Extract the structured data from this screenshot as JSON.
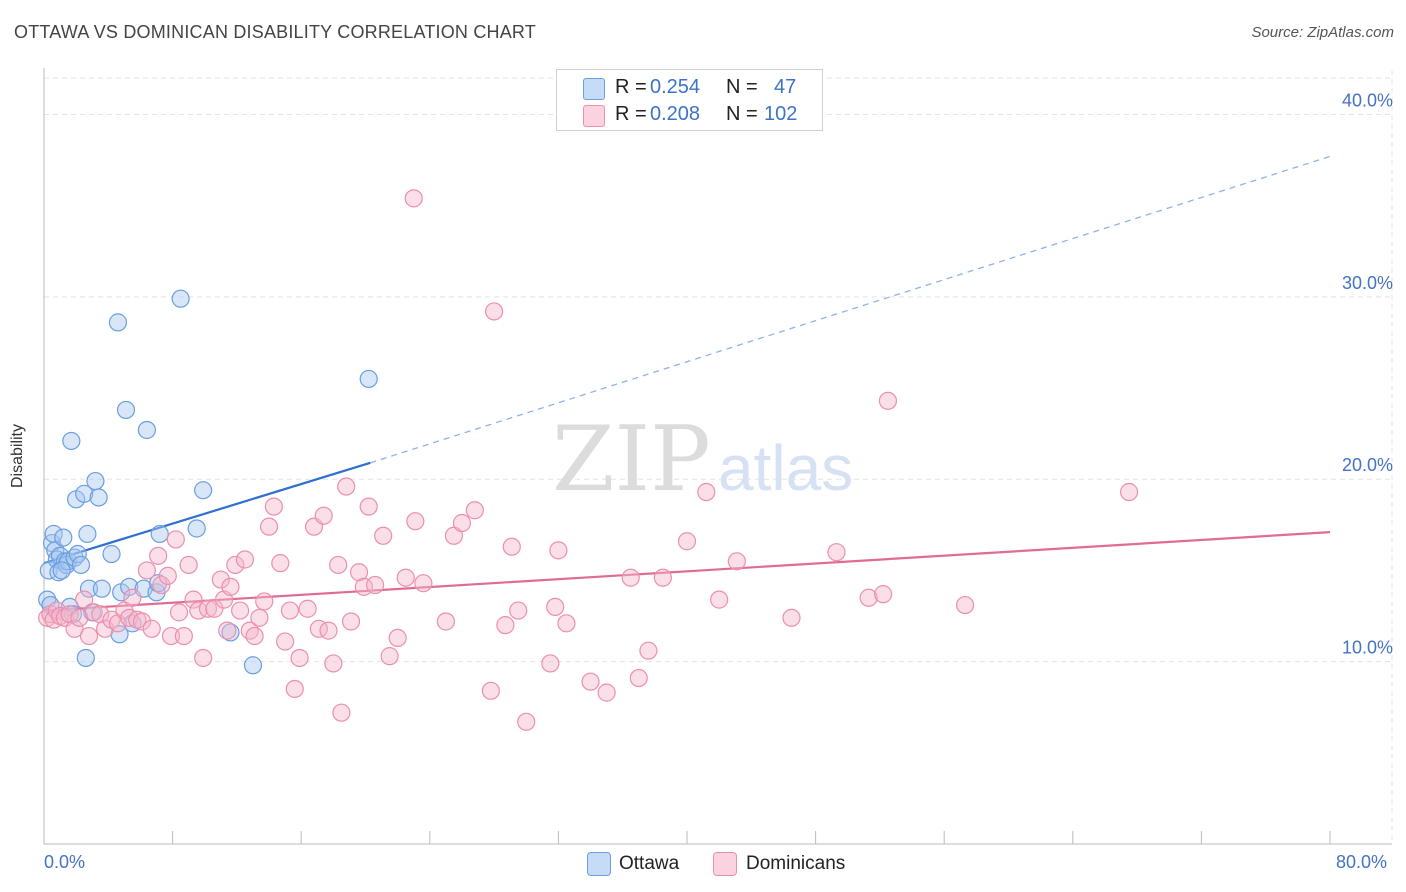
{
  "header": {
    "title": "OTTAWA VS DOMINICAN DISABILITY CORRELATION CHART",
    "source": "Source: ZipAtlas.com"
  },
  "watermark": {
    "zip": "ZIP",
    "atlas": "atlas"
  },
  "legend": {
    "rows": [
      {
        "r_label": "R = ",
        "r_value": "0.254",
        "n_label": "N = ",
        "n_value": "47",
        "color": "#a9c8f0"
      },
      {
        "r_label": "R = ",
        "r_value": "0.208",
        "n_label": "N = ",
        "n_value": "102",
        "color": "#f5b8cc"
      }
    ]
  },
  "bottom_legend": [
    {
      "label": "Ottawa",
      "color": "#a9c8f0"
    },
    {
      "label": "Dominicans",
      "color": "#f5b8cc"
    }
  ],
  "chart_data": {
    "type": "scatter",
    "title": "OTTAWA VS DOMINICAN DISABILITY CORRELATION CHART",
    "ylabel": "Disability",
    "xlabel": "",
    "xlim": [
      0,
      80
    ],
    "ylim": [
      0,
      42
    ],
    "x_tick_labels": [
      "0.0%",
      "80.0%"
    ],
    "y_ticks": [
      10,
      20,
      30,
      40
    ],
    "y_tick_labels": [
      "10.0%",
      "20.0%",
      "30.0%",
      "40.0%"
    ],
    "grid": true,
    "legend_position": "top-center",
    "series": [
      {
        "name": "Ottawa",
        "color": "#6a9fe0",
        "fill": "#a9c8f0",
        "r": 0.254,
        "n": 47,
        "trend": {
          "x0": 0,
          "y0": 15.4,
          "x1": 20.3,
          "y1": 20.9,
          "dash_to_x": 80,
          "dash_to_y": 37.7
        },
        "points": [
          [
            0.2,
            13.4
          ],
          [
            0.3,
            15.0
          ],
          [
            0.5,
            16.5
          ],
          [
            0.6,
            17.0
          ],
          [
            0.7,
            16.1
          ],
          [
            0.8,
            15.6
          ],
          [
            0.9,
            14.9
          ],
          [
            1.0,
            15.8
          ],
          [
            1.2,
            16.8
          ],
          [
            1.3,
            15.5
          ],
          [
            1.4,
            15.3
          ],
          [
            1.5,
            15.5
          ],
          [
            1.6,
            13.0
          ],
          [
            1.7,
            22.1
          ],
          [
            1.8,
            12.6
          ],
          [
            1.9,
            15.7
          ],
          [
            2.0,
            18.9
          ],
          [
            2.1,
            15.9
          ],
          [
            2.3,
            15.3
          ],
          [
            2.5,
            19.2
          ],
          [
            2.6,
            10.2
          ],
          [
            2.7,
            17.0
          ],
          [
            2.8,
            14.0
          ],
          [
            3.0,
            12.7
          ],
          [
            3.2,
            19.9
          ],
          [
            3.4,
            19.0
          ],
          [
            3.6,
            14.0
          ],
          [
            4.2,
            15.9
          ],
          [
            4.6,
            28.6
          ],
          [
            4.7,
            11.5
          ],
          [
            4.8,
            13.8
          ],
          [
            5.1,
            23.8
          ],
          [
            5.3,
            14.1
          ],
          [
            5.5,
            12.1
          ],
          [
            6.2,
            14.0
          ],
          [
            6.4,
            22.7
          ],
          [
            7.0,
            13.8
          ],
          [
            7.1,
            14.3
          ],
          [
            7.2,
            17.0
          ],
          [
            8.5,
            29.9
          ],
          [
            9.5,
            17.3
          ],
          [
            9.9,
            19.4
          ],
          [
            11.6,
            11.6
          ],
          [
            13.0,
            9.8
          ],
          [
            20.2,
            25.5
          ],
          [
            0.4,
            13.1
          ],
          [
            1.1,
            15.0
          ]
        ]
      },
      {
        "name": "Dominicans",
        "color": "#ec8fae",
        "fill": "#f5b8cc",
        "r": 0.208,
        "n": 102,
        "trend": {
          "x0": 0,
          "y0": 12.8,
          "x1": 80,
          "y1": 17.1
        },
        "points": [
          [
            0.2,
            12.4
          ],
          [
            0.4,
            12.6
          ],
          [
            0.6,
            12.3
          ],
          [
            0.8,
            12.8
          ],
          [
            1.0,
            12.5
          ],
          [
            1.3,
            12.4
          ],
          [
            1.6,
            12.6
          ],
          [
            1.9,
            11.8
          ],
          [
            2.2,
            12.4
          ],
          [
            2.5,
            13.4
          ],
          [
            2.8,
            11.4
          ],
          [
            3.1,
            12.7
          ],
          [
            3.5,
            12.6
          ],
          [
            3.8,
            11.8
          ],
          [
            4.2,
            12.3
          ],
          [
            4.6,
            12.1
          ],
          [
            5.0,
            12.8
          ],
          [
            5.3,
            12.4
          ],
          [
            5.5,
            13.5
          ],
          [
            5.8,
            12.3
          ],
          [
            6.1,
            12.2
          ],
          [
            6.4,
            15.0
          ],
          [
            6.7,
            11.8
          ],
          [
            7.1,
            15.8
          ],
          [
            7.3,
            14.2
          ],
          [
            7.7,
            14.7
          ],
          [
            7.9,
            11.4
          ],
          [
            8.2,
            16.7
          ],
          [
            8.4,
            12.7
          ],
          [
            8.7,
            11.4
          ],
          [
            9.0,
            15.3
          ],
          [
            9.3,
            13.4
          ],
          [
            9.6,
            12.8
          ],
          [
            9.9,
            10.2
          ],
          [
            10.2,
            12.9
          ],
          [
            10.6,
            12.9
          ],
          [
            11.0,
            14.5
          ],
          [
            11.2,
            13.4
          ],
          [
            11.4,
            11.7
          ],
          [
            11.6,
            14.1
          ],
          [
            11.9,
            15.3
          ],
          [
            12.2,
            12.8
          ],
          [
            12.5,
            15.6
          ],
          [
            12.8,
            11.7
          ],
          [
            13.1,
            11.4
          ],
          [
            13.4,
            12.4
          ],
          [
            13.7,
            13.3
          ],
          [
            14.0,
            17.4
          ],
          [
            14.3,
            18.5
          ],
          [
            14.7,
            15.4
          ],
          [
            15.0,
            11.1
          ],
          [
            15.3,
            12.8
          ],
          [
            15.6,
            8.5
          ],
          [
            15.9,
            10.2
          ],
          [
            16.4,
            12.9
          ],
          [
            16.8,
            17.4
          ],
          [
            17.1,
            11.8
          ],
          [
            17.4,
            18.0
          ],
          [
            17.7,
            11.7
          ],
          [
            18.0,
            9.9
          ],
          [
            18.3,
            15.3
          ],
          [
            18.5,
            7.2
          ],
          [
            18.8,
            19.6
          ],
          [
            19.1,
            12.2
          ],
          [
            19.6,
            14.9
          ],
          [
            19.9,
            14.1
          ],
          [
            20.2,
            18.5
          ],
          [
            20.6,
            14.2
          ],
          [
            21.1,
            16.9
          ],
          [
            21.5,
            10.3
          ],
          [
            22.0,
            11.3
          ],
          [
            22.5,
            14.6
          ],
          [
            23.1,
            17.7
          ],
          [
            23.6,
            14.3
          ],
          [
            25.0,
            12.2
          ],
          [
            25.5,
            16.9
          ],
          [
            26.0,
            17.6
          ],
          [
            26.8,
            18.3
          ],
          [
            27.8,
            8.4
          ],
          [
            28.0,
            29.2
          ],
          [
            28.7,
            12.0
          ],
          [
            29.1,
            16.3
          ],
          [
            29.5,
            12.8
          ],
          [
            30.0,
            6.7
          ],
          [
            31.5,
            9.9
          ],
          [
            31.8,
            13.0
          ],
          [
            32.0,
            16.1
          ],
          [
            32.5,
            12.1
          ],
          [
            34.0,
            8.9
          ],
          [
            35.0,
            8.3
          ],
          [
            36.5,
            14.6
          ],
          [
            37.0,
            9.1
          ],
          [
            37.6,
            10.6
          ],
          [
            38.5,
            14.6
          ],
          [
            40.0,
            16.6
          ],
          [
            41.2,
            19.3
          ],
          [
            42.0,
            13.4
          ],
          [
            43.1,
            15.5
          ],
          [
            46.5,
            12.4
          ],
          [
            49.3,
            16.0
          ],
          [
            51.3,
            13.5
          ],
          [
            52.2,
            13.7
          ],
          [
            52.5,
            24.3
          ],
          [
            57.3,
            13.1
          ],
          [
            67.5,
            19.3
          ],
          [
            23.0,
            35.4
          ]
        ]
      }
    ]
  }
}
